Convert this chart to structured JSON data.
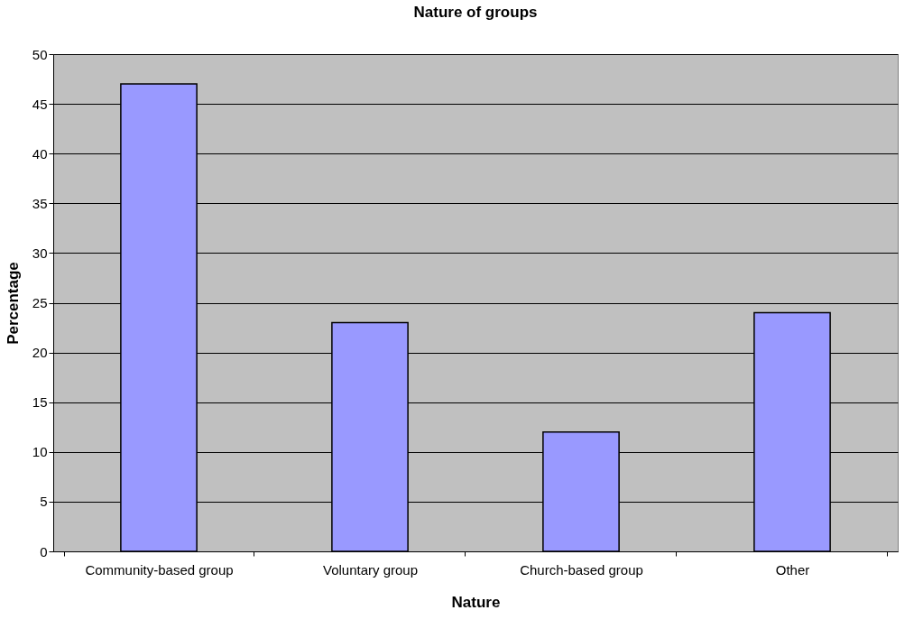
{
  "chart_data": {
    "type": "bar",
    "title": "Nature of groups",
    "xlabel": "Nature",
    "ylabel": "Percentage",
    "categories": [
      "Community-based group",
      "Voluntary group",
      "Church-based group",
      "Other"
    ],
    "values": [
      47,
      23,
      12,
      24
    ],
    "color": "#9999ff",
    "ylim": [
      0,
      50
    ],
    "yticks": [
      0,
      5,
      10,
      15,
      20,
      25,
      30,
      35,
      40,
      45,
      50
    ],
    "grid": "y"
  }
}
